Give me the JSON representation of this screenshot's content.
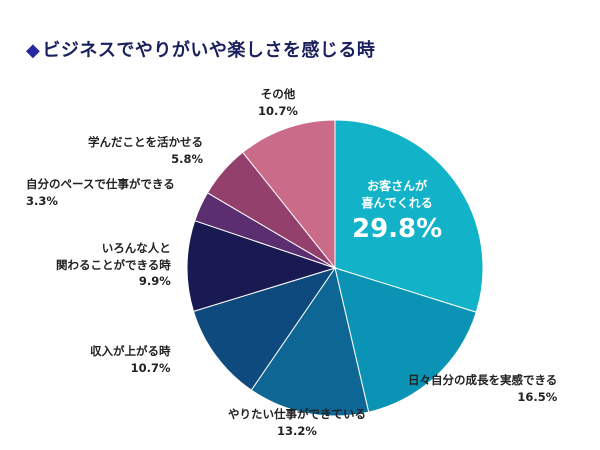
{
  "title": "ビジネスでやりがいや楽しさを感じる時",
  "title_marker": "◆",
  "chart_data": {
    "type": "pie",
    "title": "ビジネスでやりがいや楽しさを感じる時",
    "start_angle_deg": 0,
    "direction": "clockwise",
    "slices": [
      {
        "label": "お客さんが喜んでくれる",
        "label_lines": [
          "お客さんが",
          "喜んでくれる"
        ],
        "value": 29.8,
        "display": "29.8%",
        "color": "#12b3c8"
      },
      {
        "label": "日々自分の成長を実感できる",
        "label_lines": [
          "日々自分の成長を実感できる"
        ],
        "value": 16.5,
        "display": "16.5%",
        "color": "#0a93b5"
      },
      {
        "label": "やりたい仕事ができている",
        "label_lines": [
          "やりたい仕事ができている"
        ],
        "value": 13.2,
        "display": "13.2%",
        "color": "#0d6693"
      },
      {
        "label": "収入が上がる時",
        "label_lines": [
          "収入が上がる時"
        ],
        "value": 10.7,
        "display": "10.7%",
        "color": "#0e4a7e"
      },
      {
        "label": "いろんな人と関わることができる時",
        "label_lines": [
          "いろんな人と",
          "関わることができる時"
        ],
        "value": 9.9,
        "display": "9.9%",
        "color": "#1a1a52"
      },
      {
        "label": "自分のペースで仕事ができる",
        "label_lines": [
          "自分のペースで仕事ができる"
        ],
        "value": 3.3,
        "display": "3.3%",
        "color": "#5b2e70"
      },
      {
        "label": "学んだことを活かせる",
        "label_lines": [
          "学んだことを活かせる"
        ],
        "value": 5.8,
        "display": "5.8%",
        "color": "#94406c"
      },
      {
        "label": "その他",
        "label_lines": [
          "その他"
        ],
        "value": 10.7,
        "display": "10.7%",
        "color": "#cb6b8a"
      }
    ]
  }
}
